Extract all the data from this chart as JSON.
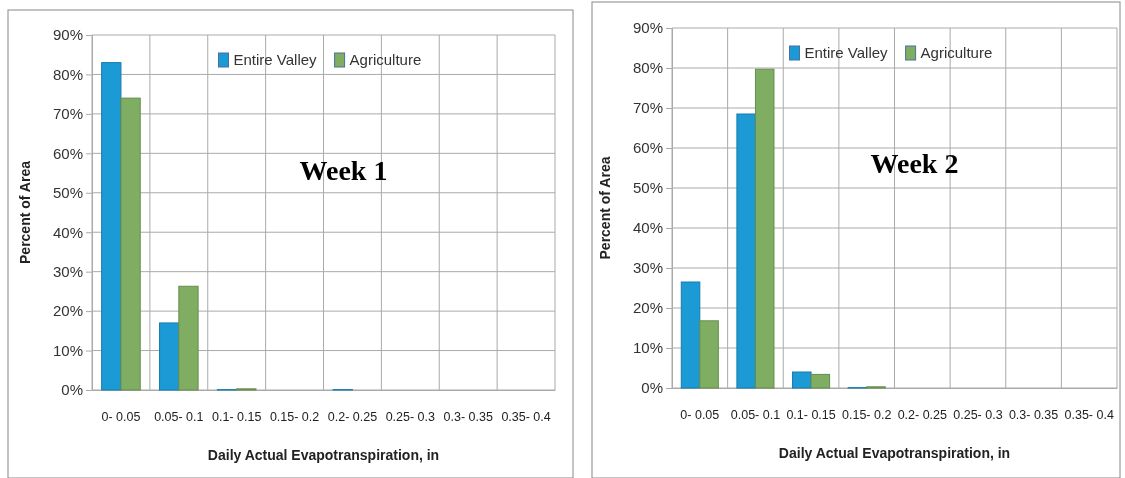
{
  "chart_data": [
    {
      "type": "bar",
      "ylabel": "Percent of Area",
      "xlabel": "Daily Actual Evapotranspiration, in",
      "annotations": [
        "Week 1"
      ],
      "categories": [
        "0- 0.05",
        "0.05- 0.1",
        "0.1- 0.15",
        "0.15- 0.2",
        "0.2- 0.25",
        "0.25- 0.3",
        "0.3- 0.35",
        "0.35- 0.4"
      ],
      "series": [
        {
          "name": "Entire Valley",
          "color": "#1b9ad6",
          "values": [
            83,
            17,
            0.1,
            0,
            0.1,
            0,
            0,
            0
          ]
        },
        {
          "name": "Agriculture",
          "color": "#7fae62",
          "values": [
            74,
            26.3,
            0.3,
            0,
            0,
            0,
            0,
            0
          ]
        }
      ],
      "ylim": [
        0,
        90
      ],
      "yticks": [
        {
          "value": 0,
          "label": "0%"
        },
        {
          "value": 10,
          "label": "10%"
        },
        {
          "value": 20,
          "label": "20%"
        },
        {
          "value": 30,
          "label": "30%"
        },
        {
          "value": 40,
          "label": "40%"
        },
        {
          "value": 50,
          "label": "50%"
        },
        {
          "value": 60,
          "label": "60%"
        },
        {
          "value": 70,
          "label": "70%"
        },
        {
          "value": 80,
          "label": "80%"
        },
        {
          "value": 90,
          "label": "90%"
        }
      ],
      "grid": true,
      "legend": "top"
    },
    {
      "type": "bar",
      "ylabel": "Percent of Area",
      "xlabel": "Daily Actual Evapotranspiration, in",
      "annotations": [
        "Week 2"
      ],
      "categories": [
        "0- 0.05",
        "0.05- 0.1",
        "0.1- 0.15",
        "0.15- 0.2",
        "0.2- 0.25",
        "0.25- 0.3",
        "0.3- 0.35",
        "0.35- 0.4"
      ],
      "series": [
        {
          "name": "Entire Valley",
          "color": "#1b9ad6",
          "values": [
            26.5,
            68.5,
            4,
            0.1,
            0,
            0,
            0,
            0
          ]
        },
        {
          "name": "Agriculture",
          "color": "#7fae62",
          "values": [
            16.8,
            79.7,
            3.4,
            0.3,
            0,
            0,
            0,
            0
          ]
        }
      ],
      "ylim": [
        0,
        90
      ],
      "yticks": [
        {
          "value": 0,
          "label": "0%"
        },
        {
          "value": 10,
          "label": "10%"
        },
        {
          "value": 20,
          "label": "20%"
        },
        {
          "value": 30,
          "label": "30%"
        },
        {
          "value": 40,
          "label": "40%"
        },
        {
          "value": 50,
          "label": "50%"
        },
        {
          "value": 60,
          "label": "60%"
        },
        {
          "value": 70,
          "label": "70%"
        },
        {
          "value": 80,
          "label": "80%"
        },
        {
          "value": 90,
          "label": "90%"
        }
      ],
      "grid": true,
      "legend": "top"
    }
  ]
}
